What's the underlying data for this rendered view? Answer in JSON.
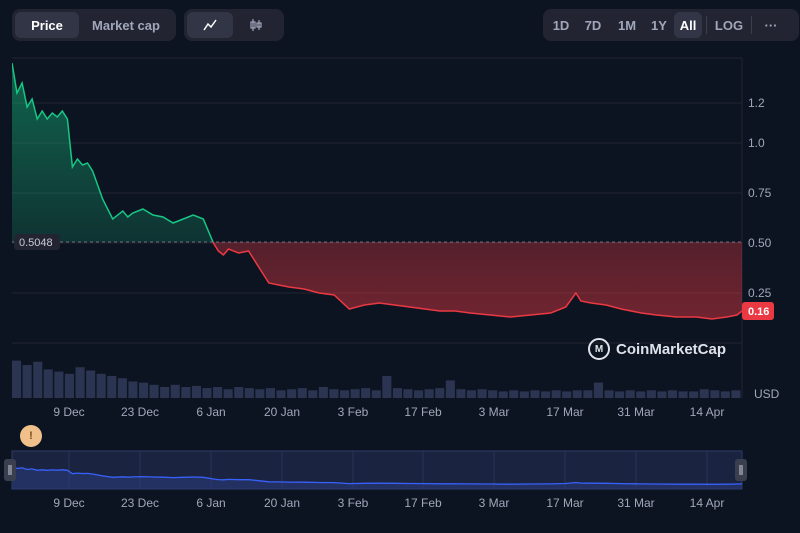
{
  "toolbar": {
    "price_tab": "Price",
    "market_cap_tab": "Market cap",
    "line_icon": "line-chart-icon",
    "candle_icon": "candlestick-icon",
    "ranges": [
      "1D",
      "7D",
      "1M",
      "1Y",
      "All"
    ],
    "active_range": "All",
    "log_label": "LOG",
    "more_label": "···"
  },
  "colors": {
    "background": "#0d1421",
    "up": "#16c784",
    "down": "#ea3943",
    "navigator": "#3861fb"
  },
  "watermark": "CoinMarketCap",
  "event_marker": "!",
  "chart_data": {
    "type": "area",
    "title": "",
    "baseline": 0.5048,
    "baseline_label": "0.5048",
    "current_label": "0.16",
    "ylabel": "USD",
    "yticks": [
      "1.2",
      "1.0",
      "0.75",
      "0.50",
      "0.25"
    ],
    "ylim": [
      0,
      1.5
    ],
    "xticks": [
      "9 Dec",
      "23 Dec",
      "6 Jan",
      "20 Jan",
      "3 Feb",
      "17 Feb",
      "3 Mar",
      "17 Mar",
      "31 Mar",
      "14 Apr"
    ],
    "series": [
      {
        "x": [
          "2023-11-28",
          "2023-11-29",
          "2023-11-30",
          "2023-12-01",
          "2023-12-02",
          "2023-12-03",
          "2023-12-04",
          "2023-12-05",
          "2023-12-06",
          "2023-12-07",
          "2023-12-08",
          "2023-12-09",
          "2023-12-10",
          "2023-12-11",
          "2023-12-12",
          "2023-12-13",
          "2023-12-14",
          "2023-12-16",
          "2023-12-18",
          "2023-12-20",
          "2023-12-21",
          "2023-12-22",
          "2023-12-24",
          "2023-12-26",
          "2023-12-28",
          "2023-12-30",
          "2024-01-01",
          "2024-01-03",
          "2024-01-05",
          "2024-01-07",
          "2024-01-08",
          "2024-01-09",
          "2024-01-10",
          "2024-01-12",
          "2024-01-14",
          "2024-01-16",
          "2024-01-18",
          "2024-01-20",
          "2024-01-22",
          "2024-01-25",
          "2024-01-28",
          "2024-01-31",
          "2024-02-03",
          "2024-02-06",
          "2024-02-09",
          "2024-02-12",
          "2024-02-15",
          "2024-02-18",
          "2024-02-21",
          "2024-02-24",
          "2024-02-27",
          "2024-03-02",
          "2024-03-06",
          "2024-03-10",
          "2024-03-14",
          "2024-03-17",
          "2024-03-19",
          "2024-03-20",
          "2024-03-22",
          "2024-03-25",
          "2024-03-28",
          "2024-04-01",
          "2024-04-04",
          "2024-04-08",
          "2024-04-12",
          "2024-04-15",
          "2024-04-18",
          "2024-04-20",
          "2024-04-21"
        ],
        "values": [
          1.4,
          1.25,
          1.3,
          1.18,
          1.22,
          1.12,
          1.16,
          1.12,
          1.15,
          1.13,
          1.16,
          1.12,
          0.88,
          0.92,
          0.89,
          0.9,
          0.86,
          0.72,
          0.62,
          0.66,
          0.63,
          0.65,
          0.67,
          0.64,
          0.63,
          0.6,
          0.62,
          0.64,
          0.62,
          0.5,
          0.46,
          0.44,
          0.47,
          0.45,
          0.46,
          0.38,
          0.3,
          0.29,
          0.28,
          0.27,
          0.25,
          0.24,
          0.17,
          0.19,
          0.2,
          0.19,
          0.18,
          0.17,
          0.16,
          0.16,
          0.15,
          0.14,
          0.13,
          0.14,
          0.15,
          0.18,
          0.25,
          0.21,
          0.2,
          0.19,
          0.17,
          0.15,
          0.14,
          0.13,
          0.13,
          0.12,
          0.13,
          0.14,
          0.16
        ]
      }
    ],
    "volume": [
      0.34,
      0.3,
      0.33,
      0.26,
      0.24,
      0.22,
      0.28,
      0.25,
      0.22,
      0.2,
      0.18,
      0.15,
      0.14,
      0.12,
      0.1,
      0.12,
      0.1,
      0.11,
      0.09,
      0.1,
      0.08,
      0.1,
      0.09,
      0.08,
      0.09,
      0.07,
      0.08,
      0.09,
      0.07,
      0.1,
      0.08,
      0.07,
      0.08,
      0.09,
      0.07,
      0.2,
      0.09,
      0.08,
      0.07,
      0.08,
      0.09,
      0.16,
      0.08,
      0.07,
      0.08,
      0.07,
      0.06,
      0.07,
      0.06,
      0.07,
      0.06,
      0.07,
      0.06,
      0.07,
      0.07,
      0.14,
      0.07,
      0.06,
      0.07,
      0.06,
      0.07,
      0.06,
      0.07,
      0.06,
      0.06,
      0.08,
      0.07,
      0.06,
      0.07
    ]
  }
}
